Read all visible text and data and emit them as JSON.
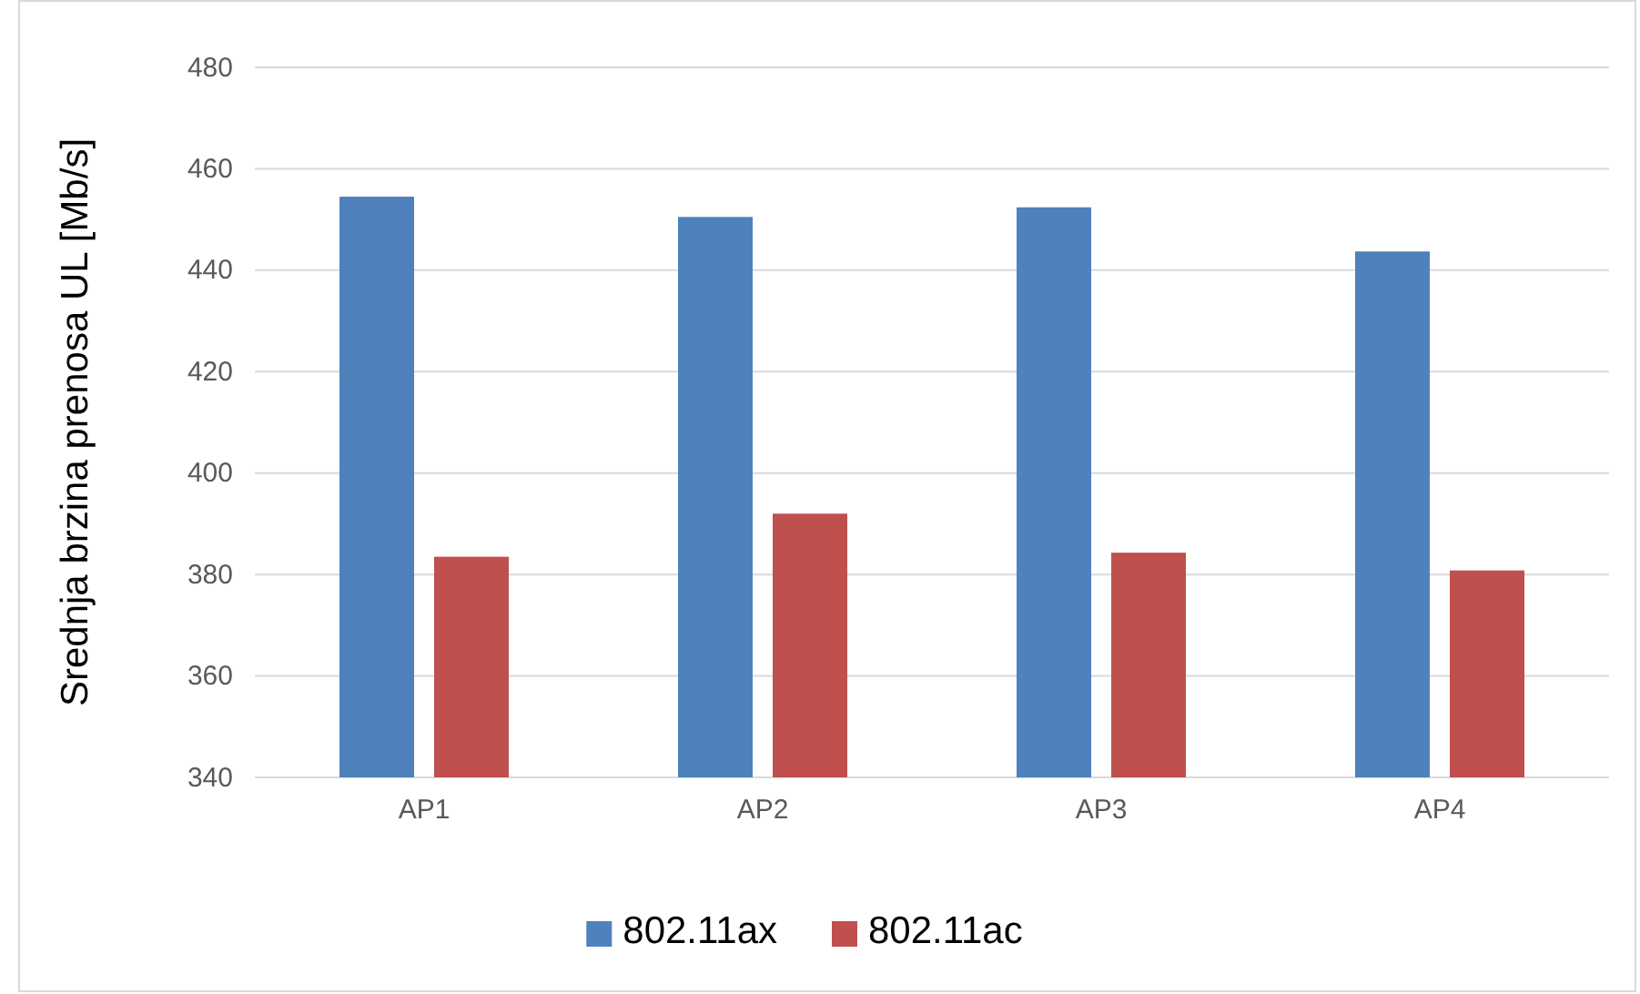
{
  "chart_data": {
    "type": "bar",
    "ylabel": "Srednja brzina prenosa UL [Mb/s]",
    "categories": [
      "AP1",
      "AP2",
      "AP3",
      "AP4"
    ],
    "series": [
      {
        "name": "802.11ax",
        "color": "#4f81bd",
        "values": [
          454.5,
          450.5,
          452.4,
          443.7
        ]
      },
      {
        "name": "802.11ac",
        "color": "#c0504d",
        "values": [
          383.5,
          392,
          384.3,
          380.8
        ]
      }
    ],
    "ylim": [
      340,
      480
    ],
    "yticks": [
      340,
      360,
      380,
      400,
      420,
      440,
      460,
      480
    ],
    "grid": "y",
    "legend": "bottom"
  }
}
